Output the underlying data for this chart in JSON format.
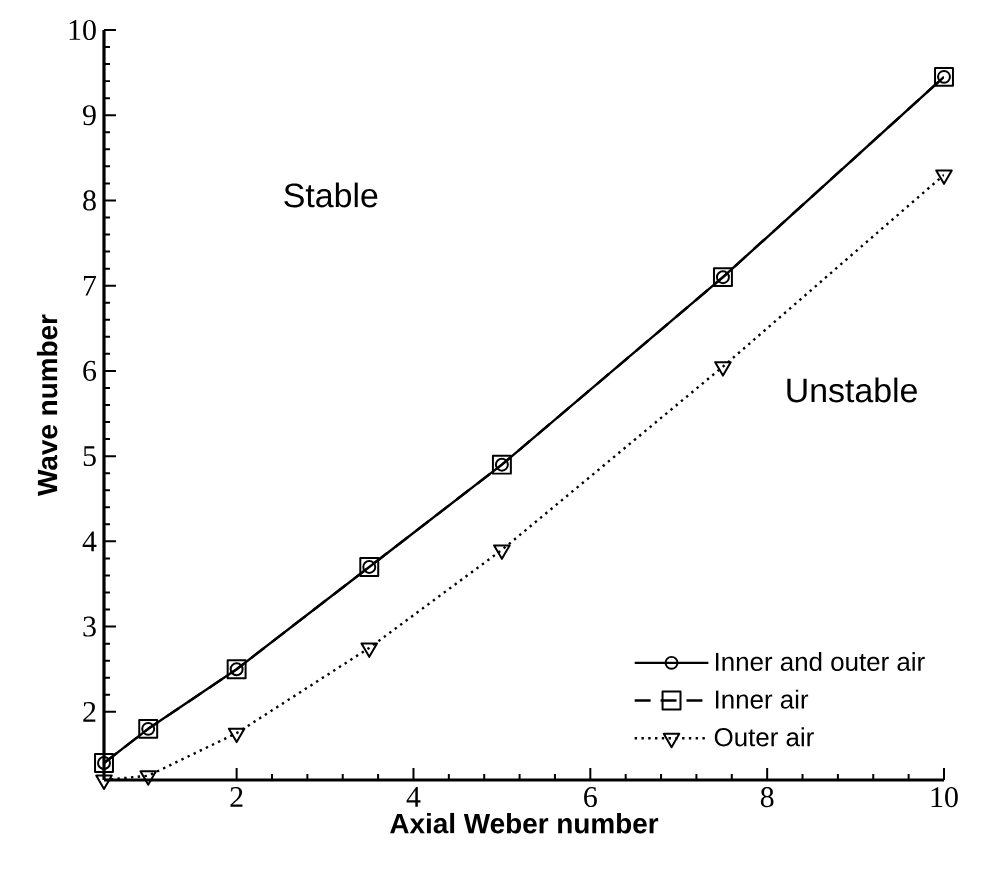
{
  "chart_data": {
    "type": "line",
    "xlabel": "Axial Weber number",
    "ylabel": "Wave number",
    "x": [
      0.5,
      1,
      2,
      3.5,
      5,
      7.5,
      10
    ],
    "series": [
      {
        "name": "Inner and outer air",
        "color": "#000000",
        "marker": "circle",
        "line_style": "solid",
        "values": [
          1.4,
          1.8,
          2.5,
          3.7,
          4.9,
          7.1,
          9.45
        ]
      },
      {
        "name": "Inner air",
        "color": "#000000",
        "marker": "square",
        "line_style": "dashed",
        "values": [
          1.4,
          1.8,
          2.5,
          3.7,
          4.9,
          7.1,
          9.45
        ]
      },
      {
        "name": "Outer air",
        "color": "#000000",
        "marker": "triangle",
        "line_style": "dotted",
        "values": [
          1.2,
          1.25,
          1.75,
          2.75,
          3.9,
          6.05,
          8.3
        ]
      }
    ],
    "xlim": [
      0.5,
      10
    ],
    "ylim": [
      1.2,
      10
    ],
    "xticks": [
      2,
      4,
      6,
      8,
      10
    ],
    "yticks": [
      2,
      3,
      4,
      5,
      6,
      7,
      8,
      9,
      10
    ],
    "legend": "bottom right",
    "grid": false,
    "annotations": [
      "Stable",
      "Unstable"
    ]
  }
}
